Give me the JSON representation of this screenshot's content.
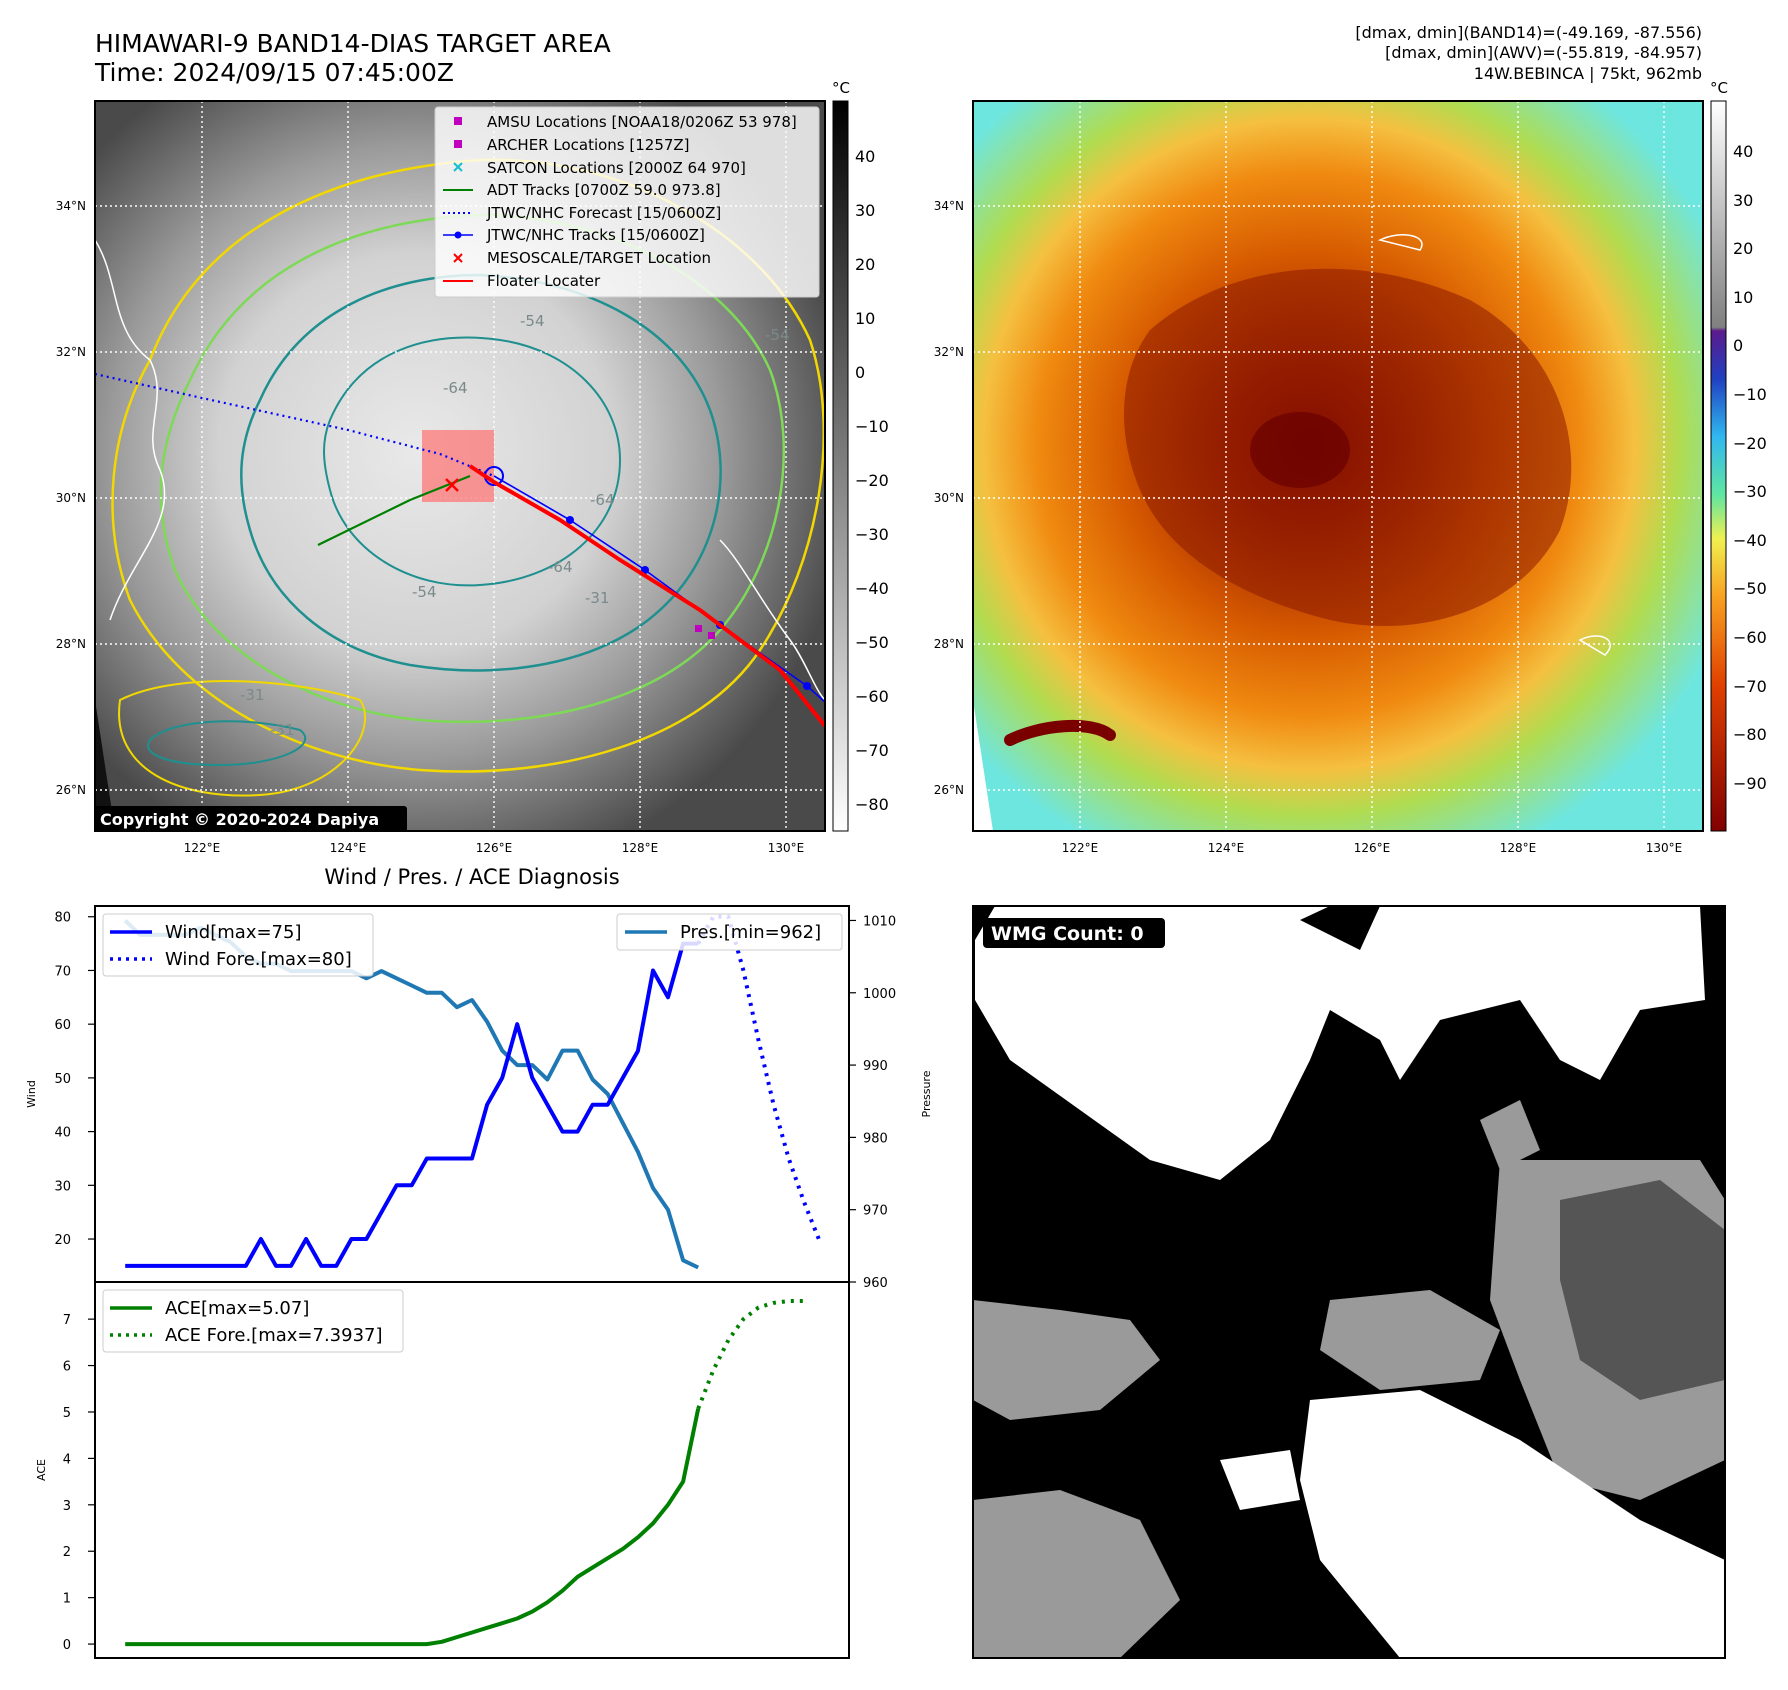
{
  "header": {
    "title": "HIMAWARI-9 BAND14-DIAS TARGET AREA",
    "time": "Time: 2024/09/15 07:45:00Z",
    "stat1": "[dmax, dmin](BAND14)=(-49.169, -87.556)",
    "stat2": "[dmax, dmin](AWV)=(-55.819, -84.957)",
    "stat3": "14W.BEBINCA | 75kt, 962mb"
  },
  "maps": {
    "lat_labels": [
      "34°N",
      "32°N",
      "30°N",
      "28°N",
      "26°N"
    ],
    "lon_labels": [
      "122°E",
      "124°E",
      "126°E",
      "128°E",
      "130°E"
    ],
    "copyright": "Copyright © 2020-2024 Dapiya",
    "contour_labels": [
      "-64",
      "-64",
      "-54",
      "-54",
      "-64",
      "-31",
      "-31",
      "-54",
      "-31"
    ],
    "cbar_left": {
      "unit": "°C",
      "ticks": [
        "40",
        "30",
        "20",
        "10",
        "0",
        "−10",
        "−20",
        "−30",
        "−40",
        "−50",
        "−60",
        "−70",
        "−80"
      ]
    },
    "cbar_right": {
      "unit": "°C",
      "ticks": [
        "40",
        "30",
        "20",
        "10",
        "0",
        "−10",
        "−20",
        "−30",
        "−40",
        "−50",
        "−60",
        "−70",
        "−80",
        "−90"
      ]
    },
    "legend": [
      {
        "label": "AMSU Locations [NOAA18/0206Z 53 978]",
        "marker": "square",
        "color": "#bf00bf"
      },
      {
        "label": "ARCHER Locations [1257Z]",
        "marker": "square",
        "color": "#bf00bf"
      },
      {
        "label": "SATCON Locations [2000Z 64 970]",
        "marker": "x",
        "color": "#17becf"
      },
      {
        "label": "ADT Tracks [0700Z 59.0 973.8]",
        "marker": "line",
        "color": "#008000"
      },
      {
        "label": "JTWC/NHC Forecast [15/0600Z]",
        "marker": "dotted",
        "color": "#0000ff"
      },
      {
        "label": "JTWC/NHC Tracks [15/0600Z]",
        "marker": "line-dot",
        "color": "#0000ff"
      },
      {
        "label": "MESOSCALE/TARGET Location",
        "marker": "x",
        "color": "#ff0000"
      },
      {
        "label": "Floater Locater",
        "marker": "line",
        "color": "#ff0000"
      }
    ]
  },
  "wmg": {
    "label": "WMG Count: 0"
  },
  "chart_data": [
    {
      "type": "line",
      "title": "Wind / Pres. / ACE Diagnosis",
      "ylabel": "Wind",
      "ylim": [
        12,
        82
      ],
      "xlim": [
        -2,
        48
      ],
      "yticks": [
        20,
        30,
        40,
        50,
        60,
        70,
        80
      ],
      "series": [
        {
          "name": "Wind[max=75]",
          "color": "#0000ff",
          "style": "solid",
          "x": [
            0,
            1,
            2,
            3,
            4,
            5,
            6,
            7,
            8,
            9,
            10,
            11,
            12,
            13,
            14,
            15,
            16,
            17,
            18,
            19,
            20,
            21,
            22,
            23,
            24,
            25,
            26,
            27,
            28,
            29,
            30,
            31,
            32,
            33,
            34,
            35,
            36,
            37,
            38
          ],
          "values": [
            15,
            15,
            15,
            15,
            15,
            15,
            15,
            15,
            15,
            20,
            15,
            15,
            20,
            15,
            15,
            20,
            20,
            25,
            30,
            30,
            35,
            35,
            35,
            35,
            45,
            50,
            60,
            50,
            45,
            40,
            40,
            45,
            45,
            50,
            55,
            70,
            65,
            75,
            75
          ]
        },
        {
          "name": "Wind Fore.[max=80]",
          "color": "#0000ff",
          "style": "dotted",
          "x": [
            38,
            39,
            40,
            41,
            42,
            43,
            44,
            45,
            46
          ],
          "values": [
            75,
            80,
            80,
            70,
            57,
            45,
            35,
            27,
            20
          ]
        }
      ]
    },
    {
      "type": "line",
      "ylabel": "Pressure",
      "ylim": [
        960,
        1012
      ],
      "yticks": [
        960,
        970,
        980,
        990,
        1000,
        1010
      ],
      "series": [
        {
          "name": "Pres.[min=962]",
          "color": "#1f77b4",
          "style": "solid",
          "x": [
            0,
            1,
            2,
            3,
            4,
            5,
            6,
            7,
            8,
            9,
            10,
            11,
            12,
            13,
            14,
            15,
            16,
            17,
            18,
            19,
            20,
            21,
            22,
            23,
            24,
            25,
            26,
            27,
            28,
            29,
            30,
            31,
            32,
            33,
            34,
            35,
            36,
            37,
            38
          ],
          "values": [
            1010,
            1008,
            1008,
            1008,
            1008,
            1009,
            1008,
            1007,
            1005,
            1004,
            1004,
            1003,
            1003,
            1003,
            1003,
            1003,
            1002,
            1003,
            1002,
            1001,
            1000,
            1000,
            998,
            999,
            996,
            992,
            990,
            990,
            988,
            992,
            992,
            988,
            986,
            982,
            978,
            973,
            970,
            963,
            962
          ]
        }
      ]
    },
    {
      "type": "line",
      "ylabel": "ACE",
      "ylim": [
        -0.3,
        7.8
      ],
      "yticks": [
        0,
        1,
        2,
        3,
        4,
        5,
        6,
        7
      ],
      "series": [
        {
          "name": "ACE[max=5.07]",
          "color": "#008000",
          "style": "solid",
          "x": [
            0,
            3,
            6,
            9,
            12,
            15,
            18,
            19,
            20,
            21,
            22,
            23,
            24,
            25,
            26,
            27,
            28,
            29,
            30,
            31,
            32,
            33,
            34,
            35,
            36,
            37,
            38
          ],
          "values": [
            0,
            0,
            0,
            0,
            0,
            0,
            0,
            0,
            0,
            0.05,
            0.15,
            0.25,
            0.35,
            0.45,
            0.55,
            0.7,
            0.9,
            1.15,
            1.45,
            1.65,
            1.85,
            2.05,
            2.3,
            2.6,
            3.0,
            3.5,
            5.07
          ]
        },
        {
          "name": "ACE Fore.[max=7.3937]",
          "color": "#008000",
          "style": "dotted",
          "x": [
            38,
            39,
            40,
            41,
            42,
            43,
            44,
            45
          ],
          "values": [
            5.07,
            5.9,
            6.55,
            7.0,
            7.25,
            7.35,
            7.39,
            7.39
          ]
        }
      ]
    }
  ]
}
